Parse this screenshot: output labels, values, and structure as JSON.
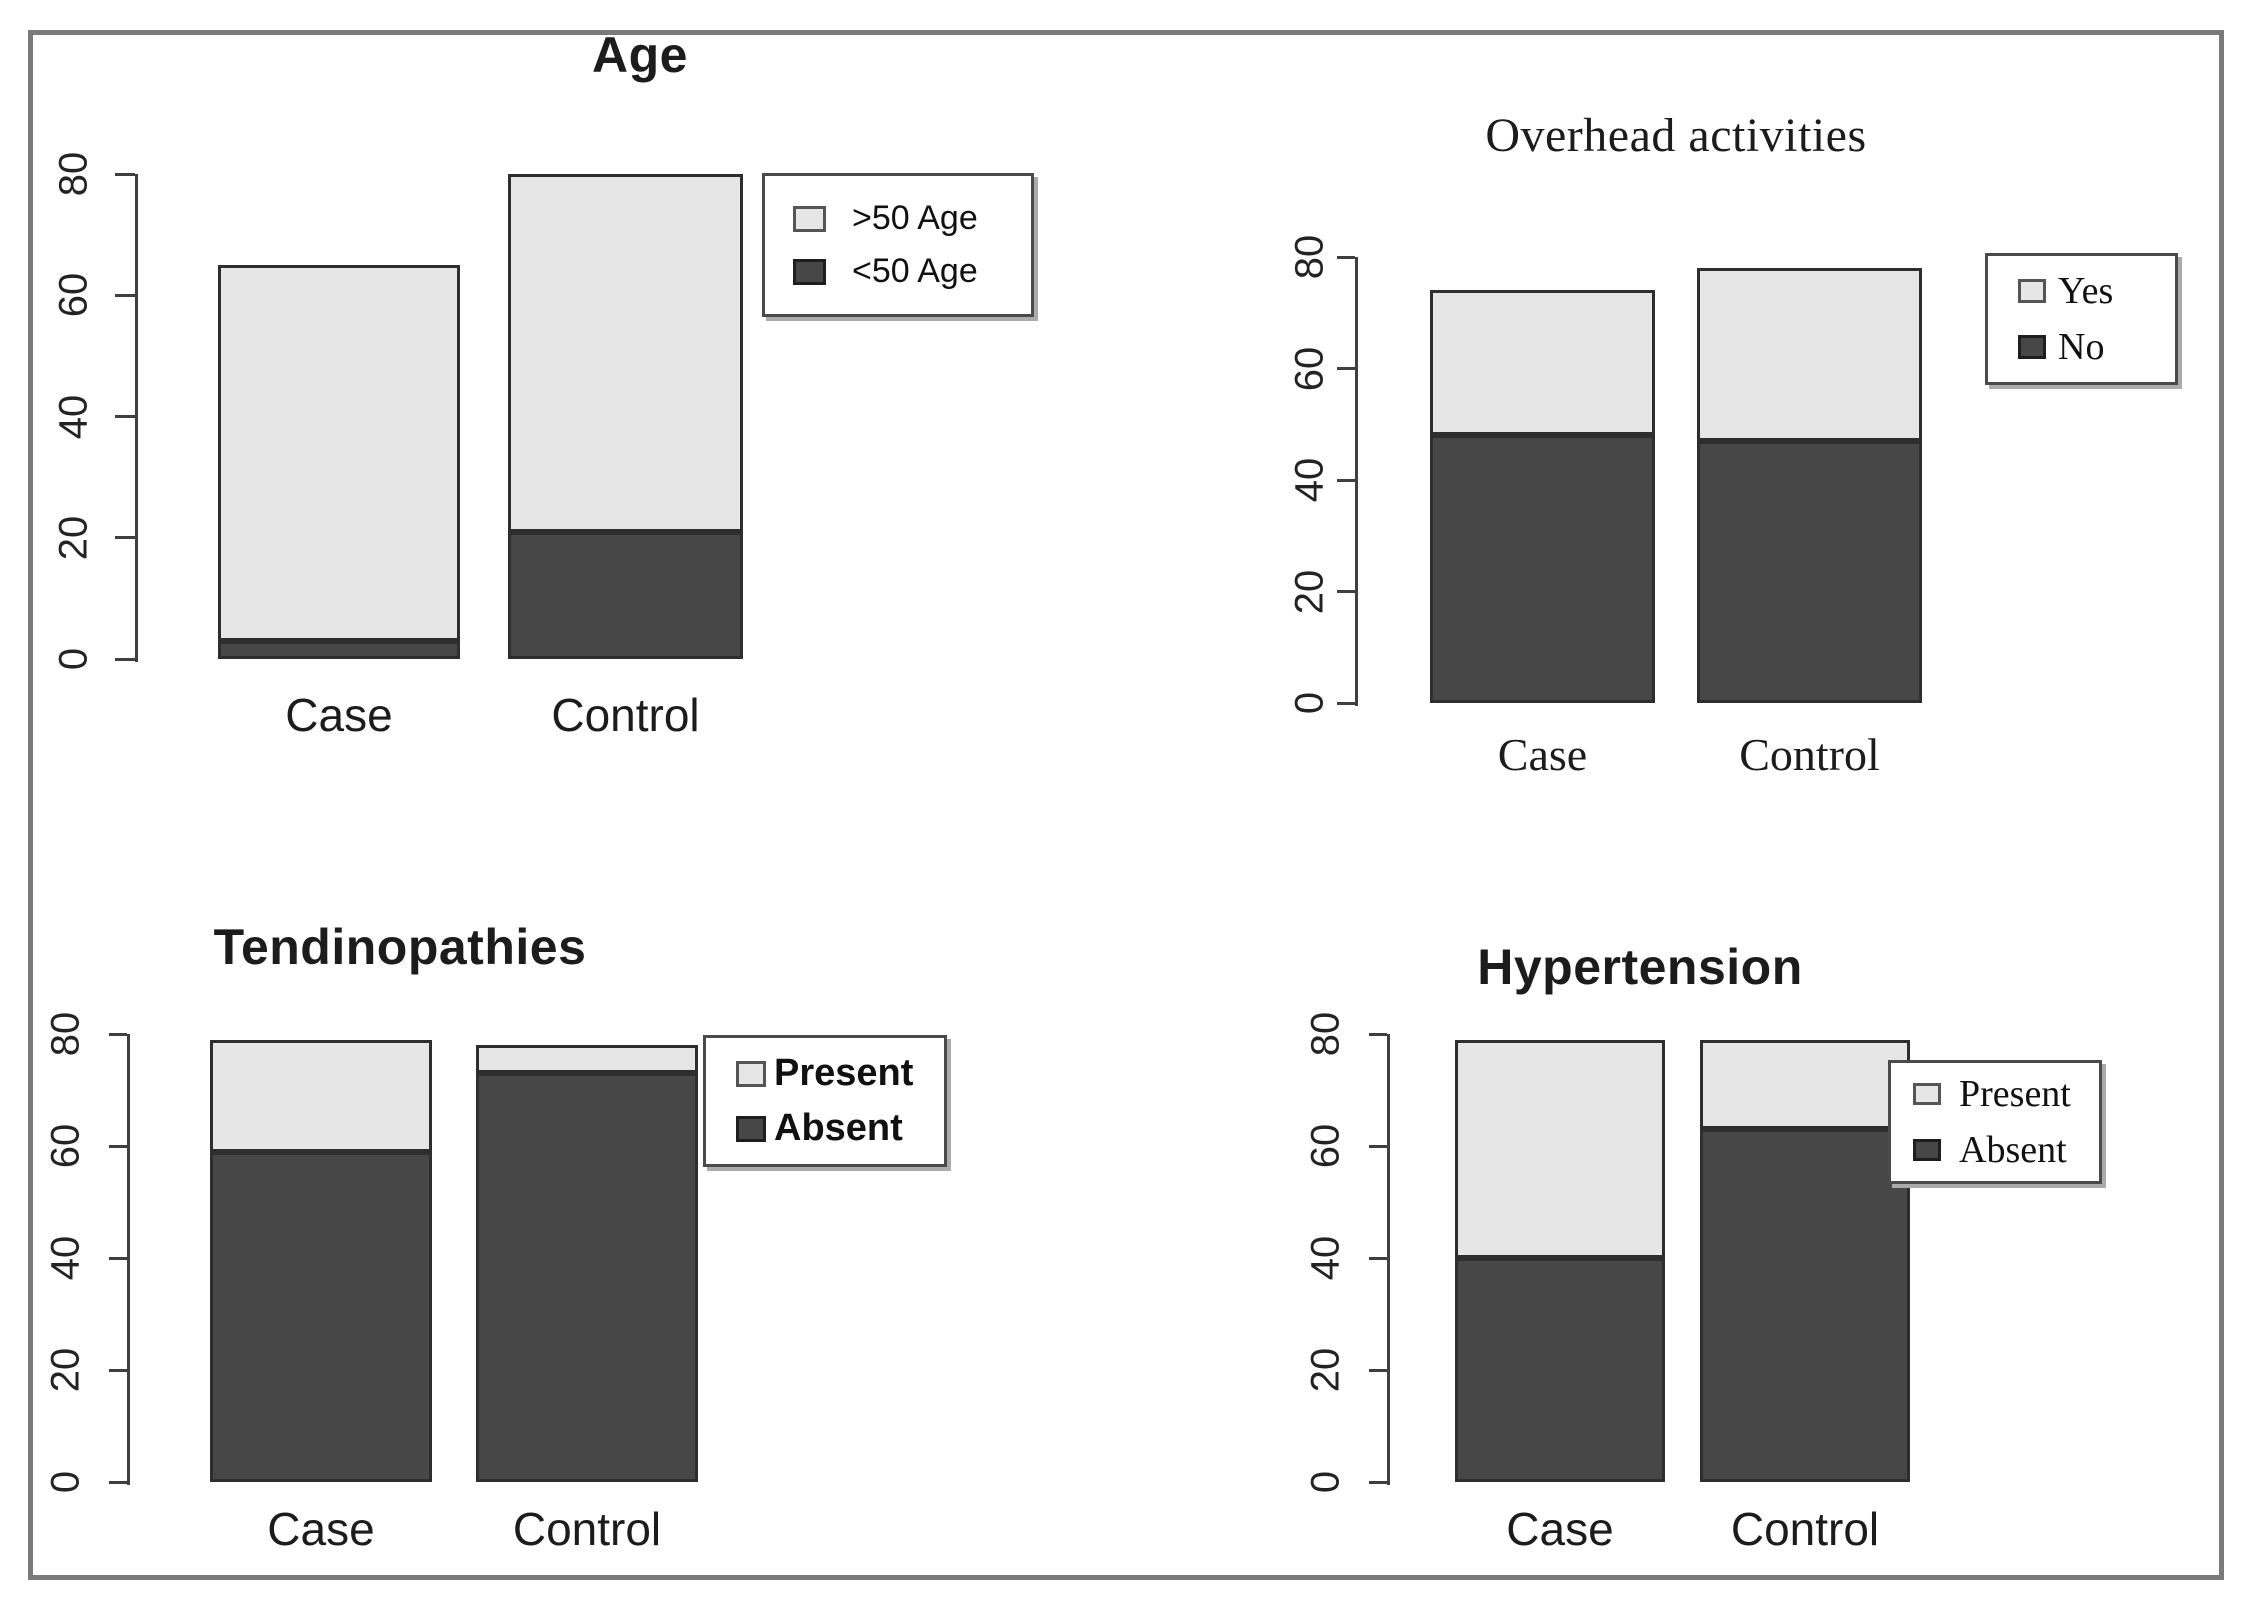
{
  "figure": {
    "background": "#ffffff",
    "border_color": "#7a7a7a"
  },
  "colors": {
    "light_fill": "#e6e6e6",
    "dark_fill": "#474747",
    "bar_border": "#2e2e2e",
    "axis": "#3f3f3f",
    "text": "#1c1c1c"
  },
  "chart_data": [
    {
      "type": "bar",
      "stacked": true,
      "title": "Age",
      "categories": [
        "Case",
        "Control"
      ],
      "series": [
        {
          "name": "<50 Age",
          "swatch": "dark",
          "values": [
            3,
            21
          ]
        },
        {
          "name": ">50 Age",
          "swatch": "light",
          "values": [
            62,
            59
          ]
        }
      ],
      "totals": [
        65,
        80
      ],
      "legend": [
        {
          "label": ">50 Age",
          "swatch": "light"
        },
        {
          "label": "<50 Age",
          "swatch": "dark"
        }
      ],
      "xlabel": "",
      "ylabel": "",
      "ylim": [
        0,
        80
      ],
      "yticks": [
        0,
        20,
        40,
        60,
        80
      ],
      "legend_position": "right",
      "grid": false
    },
    {
      "type": "bar",
      "stacked": true,
      "title": "Overhead activities",
      "categories": [
        "Case",
        "Control"
      ],
      "series": [
        {
          "name": "No",
          "swatch": "dark",
          "values": [
            48,
            47
          ]
        },
        {
          "name": "Yes",
          "swatch": "light",
          "values": [
            26,
            31
          ]
        }
      ],
      "totals": [
        74,
        78
      ],
      "legend": [
        {
          "label": "Yes",
          "swatch": "light"
        },
        {
          "label": "No",
          "swatch": "dark"
        }
      ],
      "xlabel": "",
      "ylabel": "",
      "ylim": [
        0,
        80
      ],
      "yticks": [
        0,
        20,
        40,
        60,
        80
      ],
      "legend_position": "right",
      "grid": false
    },
    {
      "type": "bar",
      "stacked": true,
      "title": "Tendinopathies",
      "categories": [
        "Case",
        "Control"
      ],
      "series": [
        {
          "name": "Absent",
          "swatch": "dark",
          "values": [
            59,
            73
          ]
        },
        {
          "name": "Present",
          "swatch": "light",
          "values": [
            20,
            5
          ]
        }
      ],
      "totals": [
        79,
        78
      ],
      "legend": [
        {
          "label": "Present",
          "swatch": "light"
        },
        {
          "label": "Absent",
          "swatch": "dark"
        }
      ],
      "xlabel": "",
      "ylabel": "",
      "ylim": [
        0,
        80
      ],
      "yticks": [
        0,
        20,
        40,
        60,
        80
      ],
      "legend_position": "right",
      "grid": false
    },
    {
      "type": "bar",
      "stacked": true,
      "title": "Hypertension",
      "categories": [
        "Case",
        "Control"
      ],
      "series": [
        {
          "name": "Absent",
          "swatch": "dark",
          "values": [
            40,
            63
          ]
        },
        {
          "name": "Present",
          "swatch": "light",
          "values": [
            39,
            16
          ]
        }
      ],
      "totals": [
        79,
        79
      ],
      "legend": [
        {
          "label": "Present",
          "swatch": "light"
        },
        {
          "label": "Absent",
          "swatch": "dark"
        }
      ],
      "xlabel": "",
      "ylabel": "",
      "ylim": [
        0,
        80
      ],
      "yticks": [
        0,
        20,
        40,
        60,
        80
      ],
      "legend_position": "right",
      "grid": false
    }
  ]
}
